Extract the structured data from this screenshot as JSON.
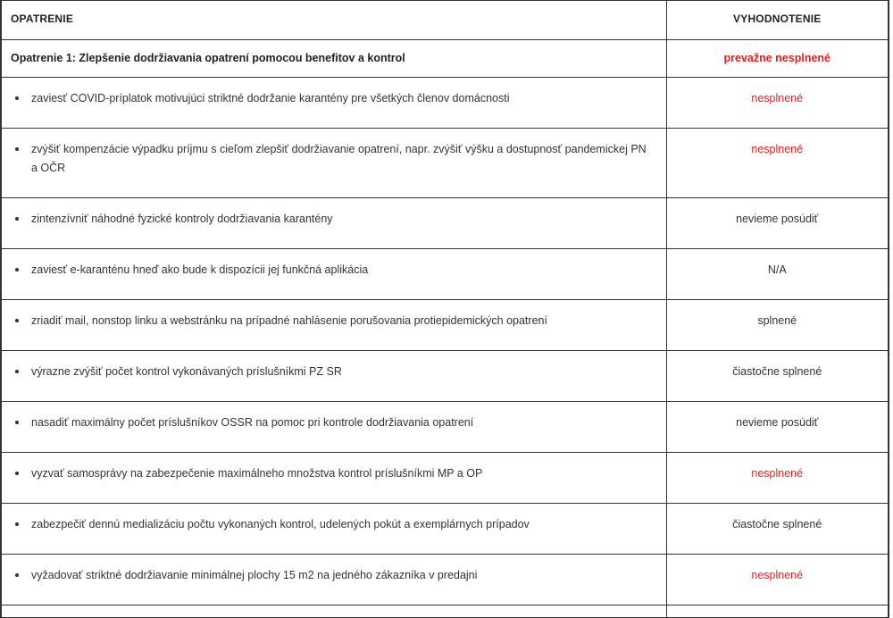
{
  "header": {
    "col_measure": "OPATRENIE",
    "col_evaluation": "VYHODNOTENIE"
  },
  "group": {
    "title": "Opatrenie 1: Zlepšenie dodržiavania opatrení pomocou benefitov a kontrol",
    "status": "prevažne nesplnené",
    "status_color": "#e02020"
  },
  "items": [
    {
      "text": "zaviesť COVID-príplatok motivujúci striktné dodržanie karantény pre všetkých členov domácnosti",
      "status": "nesplnené",
      "status_type": "red"
    },
    {
      "text": "zvýšiť kompenzácie výpadku príjmu s cieľom zlepšiť dodržiavanie opatrení, napr. zvýšiť výšku a dostupnosť pandemickej PN a OČR",
      "status": "nesplnené",
      "status_type": "red"
    },
    {
      "text": "zintenzívniť náhodné fyzické kontroly dodržiavania karantény",
      "status": "nevieme posúdiť",
      "status_type": "neutral"
    },
    {
      "text": "zaviesť e-karanténu hneď ako bude k dispozícii jej funkčná aplikácia",
      "status": "N/A",
      "status_type": "neutral"
    },
    {
      "text": "zriadiť mail, nonstop linku a webstránku na prípadné nahlásenie porušovania protiepidemických opatrení",
      "status": "splnené",
      "status_type": "neutral"
    },
    {
      "text": "výrazne zvýšiť počet kontrol vykonávaných príslušníkmi PZ SR",
      "status": "čiastočne splnené",
      "status_type": "neutral"
    },
    {
      "text": "nasadiť maximálny počet príslušníkov OSSR na pomoc pri kontrole dodržiavania opatrení",
      "status": "nevieme posúdiť",
      "status_type": "neutral"
    },
    {
      "text": "vyzvať samosprávy na zabezpečenie maximálneho množstva kontrol príslušníkmi MP a OP",
      "status": "nesplnené",
      "status_type": "red"
    },
    {
      "text": "zabezpečiť dennú medializáciu počtu vykonaných kontrol, udelených pokút a exemplárnych prípadov",
      "status": "čiastočne splnené",
      "status_type": "neutral"
    },
    {
      "text": "vyžadovať striktné dodržiavanie minimálnej plochy 15 m2 na jedného zákazníka v predajni",
      "status": "nesplnené",
      "status_type": "red"
    }
  ]
}
